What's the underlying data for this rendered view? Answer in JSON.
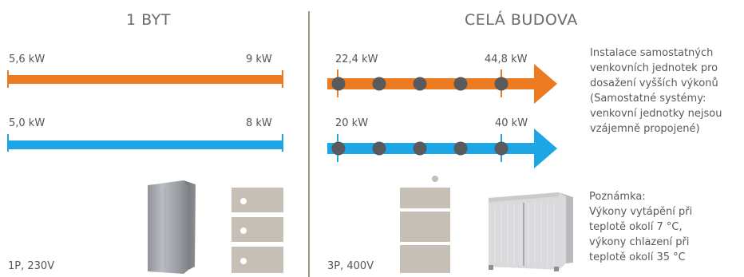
{
  "colors": {
    "heating": "#ee7a1f",
    "cooling": "#1ca6e5",
    "node": "#585a5d",
    "divider": "#9e9386",
    "unit": "#c6bfb6"
  },
  "single_apartment": {
    "title": "1 BYT",
    "heating": {
      "min_label": "5,6 kW",
      "max_label": "9 kW"
    },
    "cooling": {
      "min_label": "5,0 kW",
      "max_label": "8 kW"
    },
    "power_supply": "1P, 230V"
  },
  "whole_building": {
    "title": "CELÁ BUDOVA",
    "heating": {
      "min_label": "22,4 kW",
      "max_label": "44,8 kW"
    },
    "cooling": {
      "min_label": "20 kW",
      "max_label": "40 kW"
    },
    "power_supply": "3P, 400V",
    "nodes_per_line": 5,
    "description": [
      "Instalace samostatných",
      "venkovních jednotek pro",
      "dosažení vyšších výkonů",
      "(Samostatné systémy:",
      "venkovní jednotky nejsou",
      "vzájemně propojené)"
    ]
  },
  "note": {
    "lines": [
      "Poznámka:",
      "Výkony vytápění při",
      "teplotě okolí 7 °C,",
      "výkony chlazení při",
      "teplotě okolí 35 °C"
    ]
  },
  "icons": {
    "indoor_unit": "indoor-unit-icon",
    "stacked_outdoor_units": "stacked-outdoor-units-icon",
    "vrf_outdoor_unit": "vrf-outdoor-unit-icon"
  }
}
